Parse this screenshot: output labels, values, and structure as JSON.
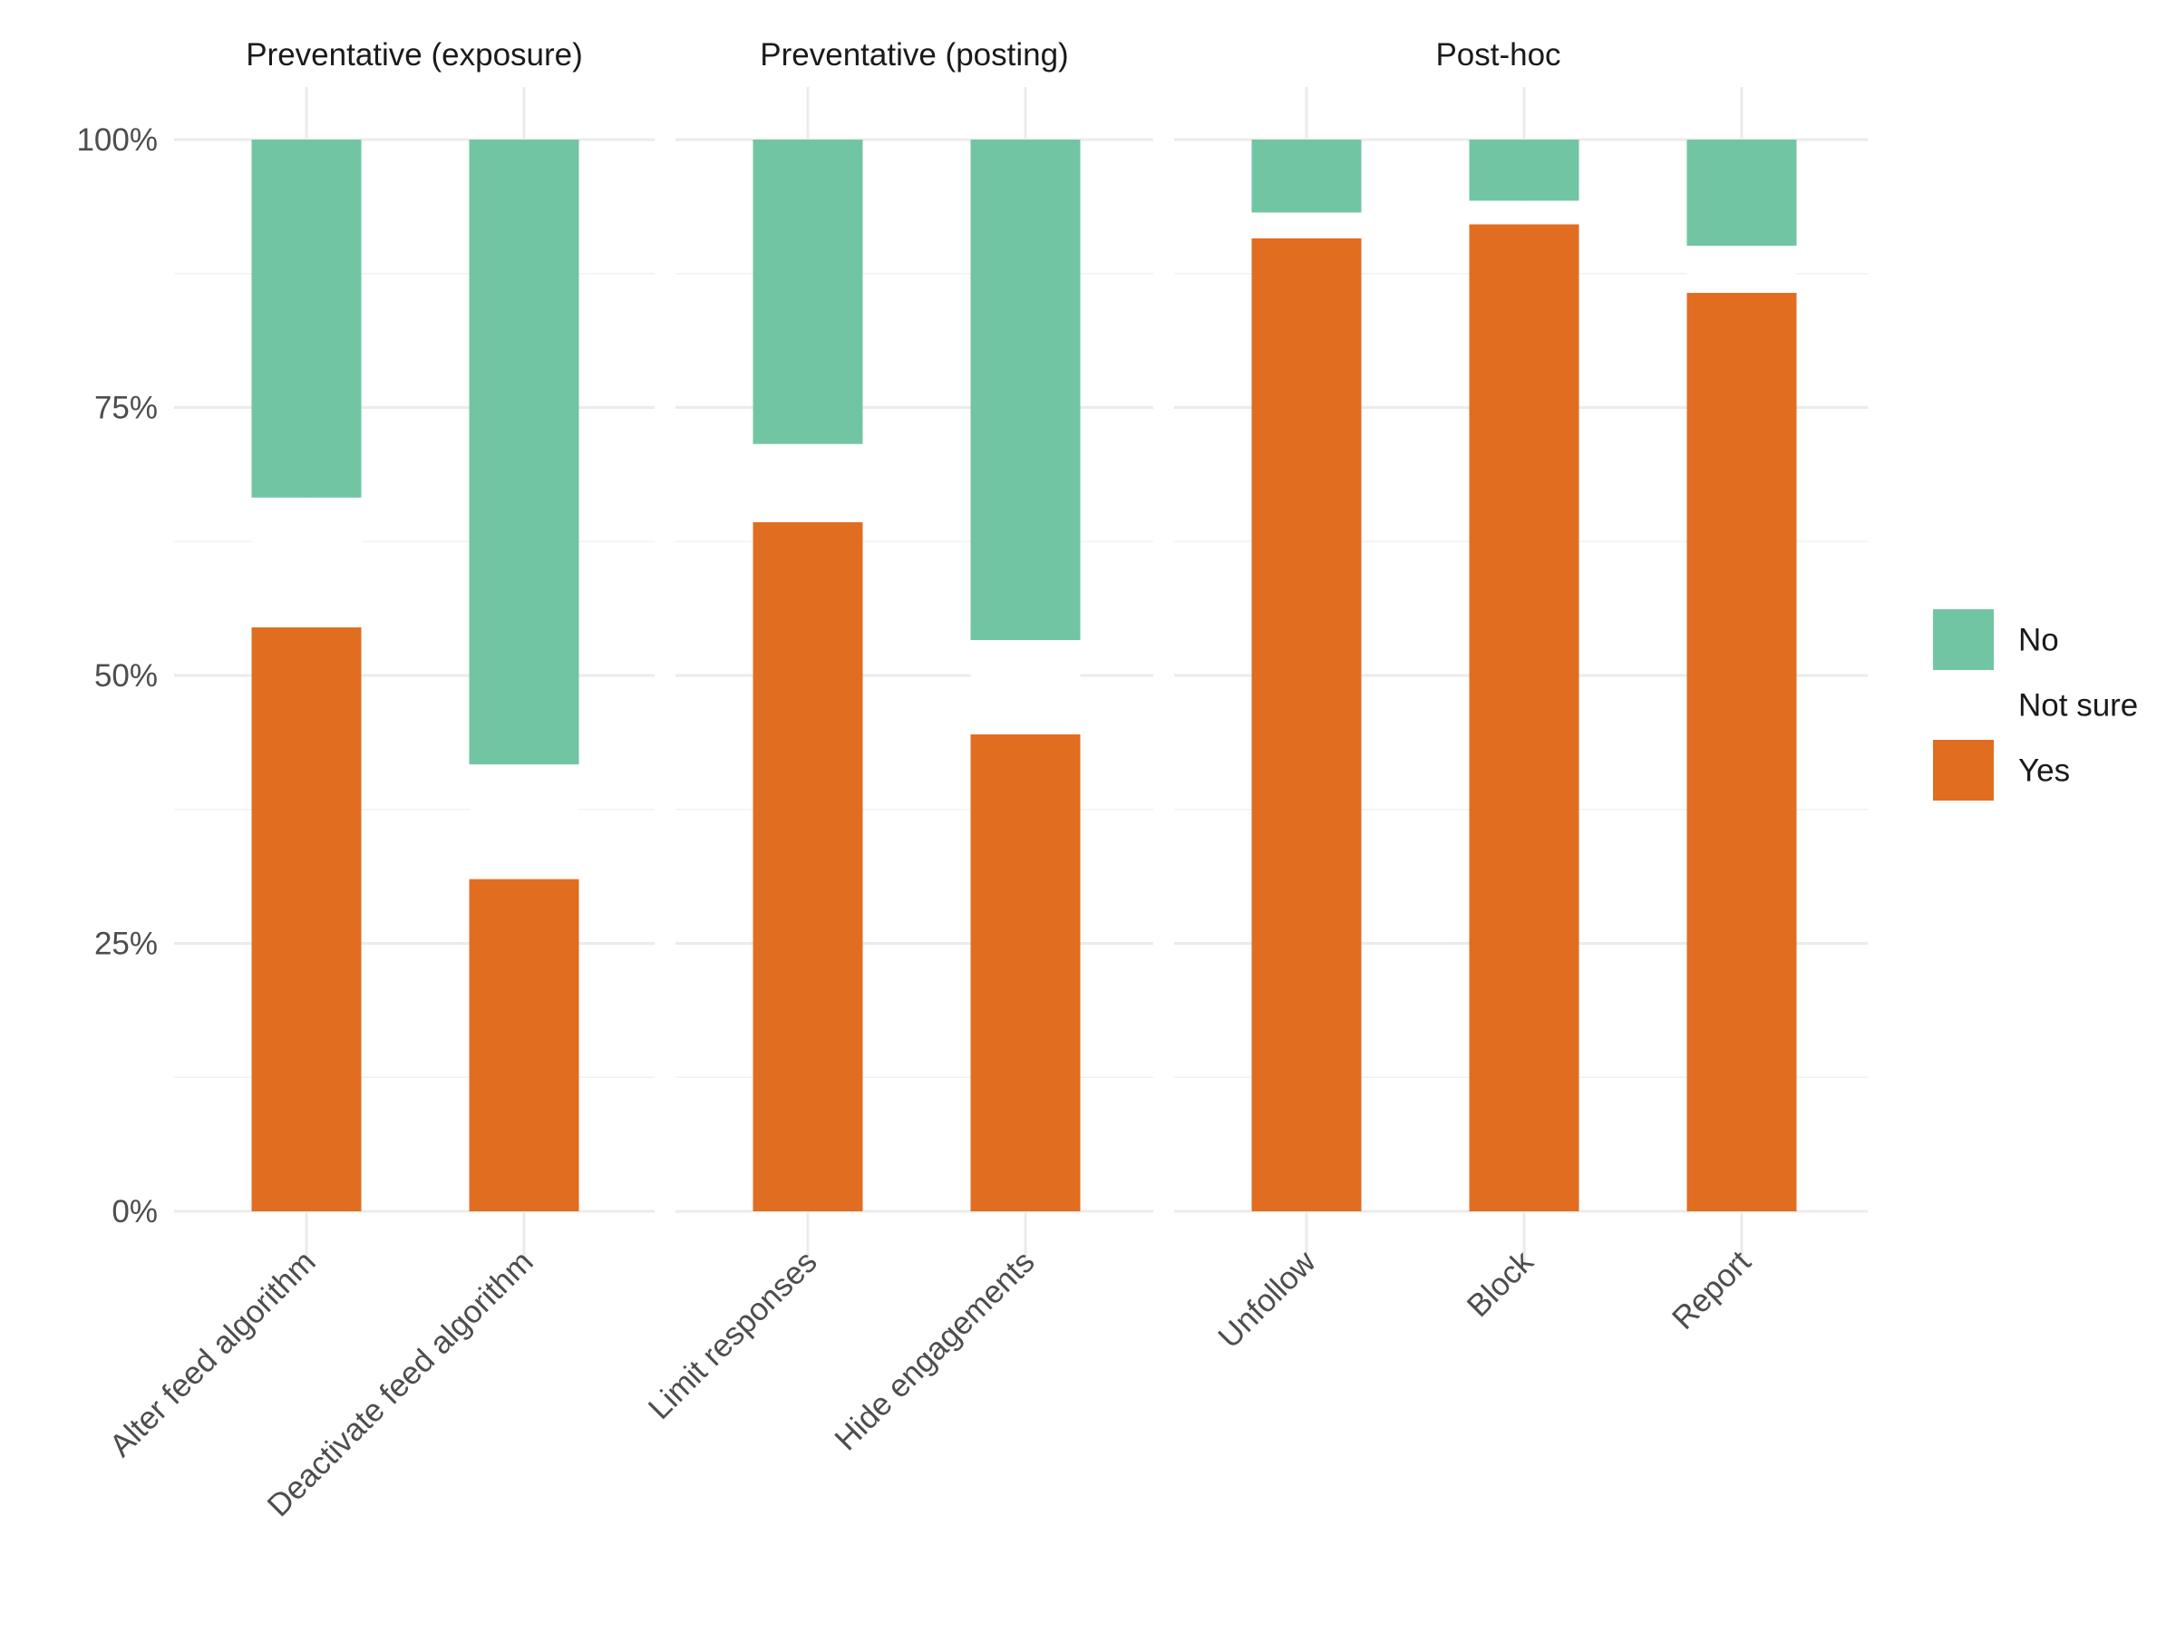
{
  "chart_data": {
    "type": "bar",
    "stacked": true,
    "ylim": [
      0,
      100
    ],
    "y_ticks": [
      0,
      25,
      50,
      75,
      100
    ],
    "y_tick_labels": [
      "0%",
      "25%",
      "50%",
      "75%",
      "100%"
    ],
    "xlabel": "",
    "ylabel": "",
    "grid": true,
    "legend_position": "right",
    "colors": {
      "No": "#72c5a3",
      "Not sure": "#ffffff",
      "Yes": "#e16d21"
    },
    "legend": [
      {
        "name": "No",
        "color": "#72c5a3"
      },
      {
        "name": "Not sure",
        "color": "#ffffff"
      },
      {
        "name": "Yes",
        "color": "#e16d21"
      }
    ],
    "facets": [
      {
        "title": "Preventative (exposure)",
        "categories": [
          "Alter feed algorithm",
          "Deactivate feed algorithm"
        ],
        "series": [
          {
            "name": "Yes",
            "values": [
              54.5,
              31.0
            ]
          },
          {
            "name": "Not sure",
            "values": [
              12.1,
              10.7
            ]
          },
          {
            "name": "No",
            "values": [
              33.4,
              58.3
            ]
          }
        ]
      },
      {
        "title": "Preventative (posting)",
        "categories": [
          "Limit responses",
          "Hide engagements"
        ],
        "series": [
          {
            "name": "Yes",
            "values": [
              64.3,
              44.5
            ]
          },
          {
            "name": "Not sure",
            "values": [
              7.3,
              8.8
            ]
          },
          {
            "name": "No",
            "values": [
              28.4,
              46.7
            ]
          }
        ]
      },
      {
        "title": "Post-hoc",
        "categories": [
          "Unfollow",
          "Block",
          "Report"
        ],
        "series": [
          {
            "name": "Yes",
            "values": [
              90.8,
              92.1,
              85.7
            ]
          },
          {
            "name": "Not sure",
            "values": [
              2.4,
              2.2,
              4.4
            ]
          },
          {
            "name": "No",
            "values": [
              6.8,
              5.7,
              9.9
            ]
          }
        ]
      }
    ]
  }
}
